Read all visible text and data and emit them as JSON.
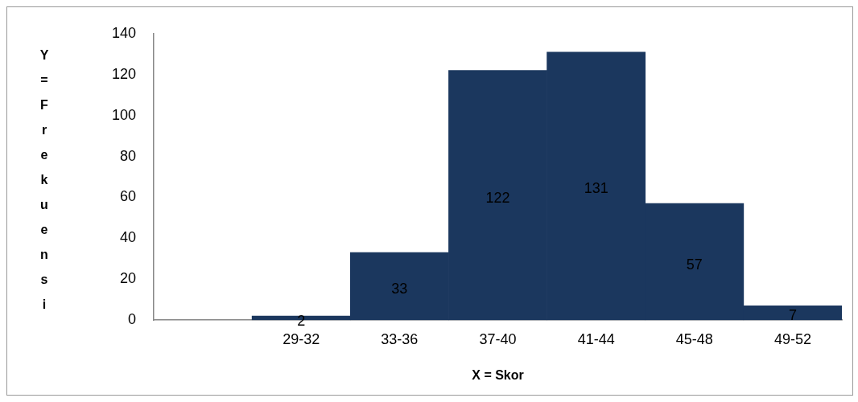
{
  "chart_data": {
    "type": "bar",
    "xlabel": "X = Skor",
    "ylabel": "Y = Frekuensi",
    "categories": [
      null,
      "29-32",
      "33-36",
      "37-40",
      "41-44",
      "45-48",
      "49-52"
    ],
    "values": [
      null,
      2,
      33,
      122,
      131,
      57,
      7
    ],
    "color": "#1b375e",
    "ylim": [
      0,
      140
    ],
    "yticks": [
      0,
      20,
      40,
      60,
      80,
      100,
      120,
      140
    ],
    "data_labels": true,
    "grid": false,
    "legend": false
  }
}
